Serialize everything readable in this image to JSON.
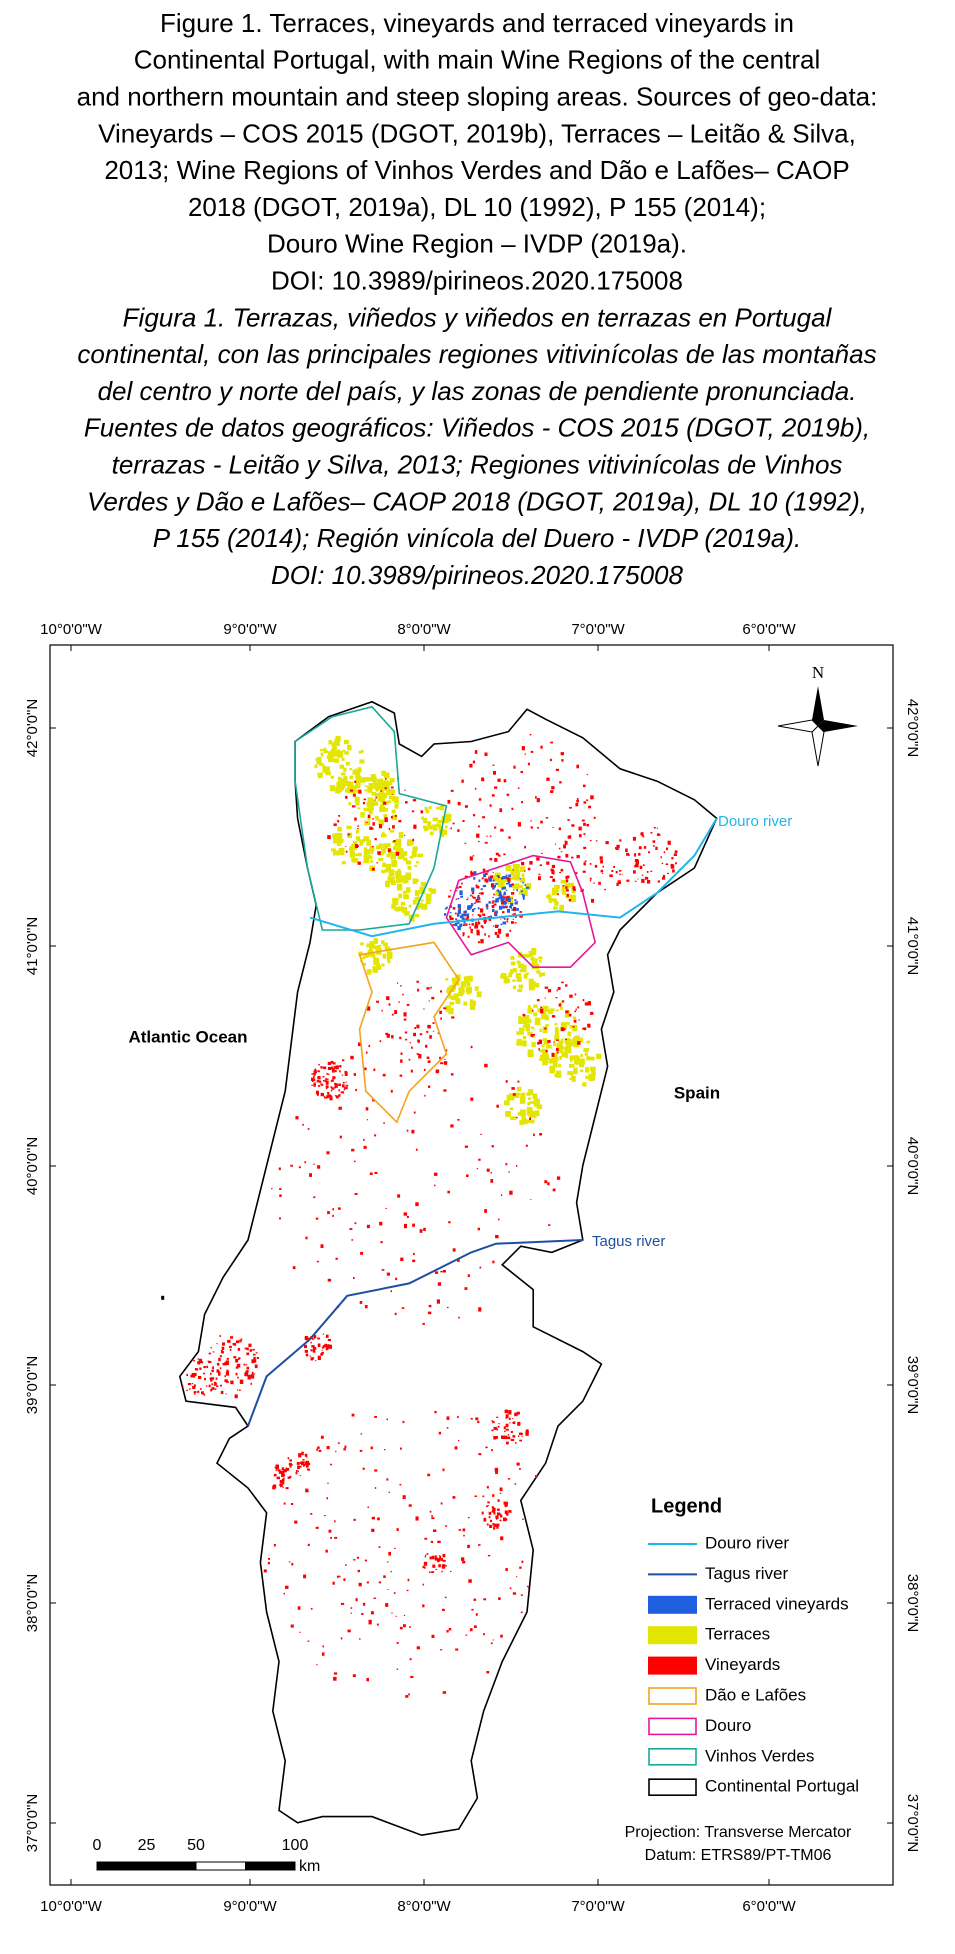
{
  "caption": {
    "english": [
      "Figure 1. Terraces, vineyards and terraced vineyards in",
      "Continental Portugal, with main Wine Regions of the central",
      "and northern mountain and steep sloping areas. Sources of geo-data:",
      "Vineyards – COS 2015 (DGOT, 2019b), Terraces – Leitão & Silva,",
      "2013; Wine Regions of Vinhos Verdes and Dão e Lafões– CAOP",
      "2018 (DGOT, 2019a), DL 10 (1992), P 155 (2014);",
      "Douro Wine Region – IVDP (2019a).",
      "DOI: 10.3989/pirineos.2020.175008"
    ],
    "spanish": [
      "Figura 1. Terrazas, viñedos y viñedos en terrazas en Portugal",
      "continental, con las principales regiones vitivinícolas de las montañas",
      "del centro y norte del país, y las zonas de pendiente pronunciada.",
      "Fuentes de datos geográficos: Viñedos - COS 2015 (DGOT, 2019b),",
      "terrazas - Leitão y Silva, 2013; Regiones vitivinícolas de Vinhos",
      "Verdes y Dão e Lafões– CAOP 2018 (DGOT, 2019a), DL 10 (1992),",
      "P 155 (2014); Región vinícola del Duero - IVDP (2019a).",
      "DOI: 10.3989/pirineos.2020.175008"
    ]
  },
  "map": {
    "longitude_labels": [
      "10°0'0\"W",
      "9°0'0\"W",
      "8°0'0\"W",
      "7°0'0\"W",
      "6°0'0\"W"
    ],
    "latitude_labels": [
      "42°0'0\"N",
      "41°0'0\"N",
      "40°0'0\"N",
      "39°0'0\"N",
      "38°0'0\"N",
      "37°0'0\"N"
    ],
    "labels": {
      "atlantic": "Atlantic Ocean",
      "spain": "Spain",
      "douro_river": "Douro river",
      "tagus_river": "Tagus river"
    },
    "north": "N",
    "legend": {
      "title": "Legend",
      "items": [
        {
          "name": "Douro river",
          "color": "#22b5ea"
        },
        {
          "name": "Tagus river",
          "color": "#1d4fa0"
        },
        {
          "name": "Terraced vineyards",
          "color": "#1f5fe0"
        },
        {
          "name": "Terraces",
          "color": "#e3e600"
        },
        {
          "name": "Vineyards",
          "color": "#ff0000"
        },
        {
          "name": "Dão e Lafões",
          "color": "#f7a21b"
        },
        {
          "name": "Douro",
          "color": "#e6179c"
        },
        {
          "name": "Vinhos Verdes",
          "color": "#1aa89a"
        },
        {
          "name": "Continental Portugal",
          "color": "#000000"
        }
      ]
    },
    "scale_bar": {
      "ticks": [
        0,
        25,
        50,
        100
      ],
      "unit": "km"
    },
    "projection": "Projection: Transverse Mercator",
    "datum": "Datum: ETRS89/PT-TM06"
  }
}
